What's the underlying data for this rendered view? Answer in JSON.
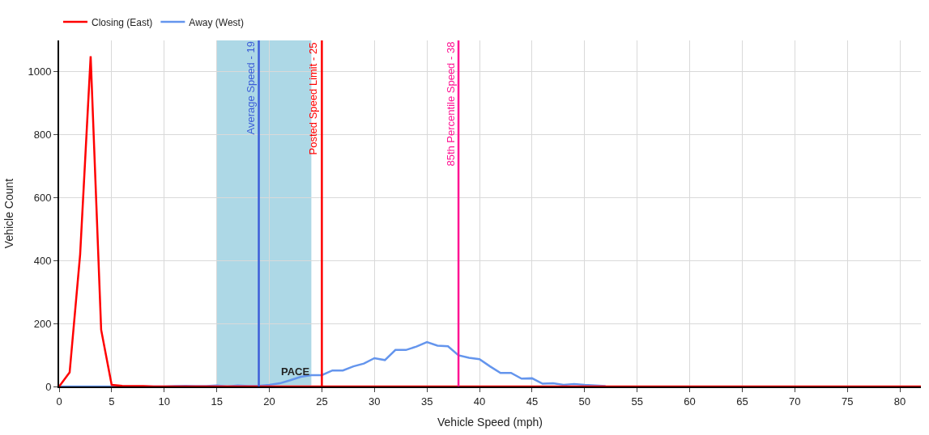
{
  "chart_data": {
    "type": "line",
    "xlabel": "Vehicle Speed (mph)",
    "ylabel": "Vehicle Count",
    "x": [
      0,
      1,
      2,
      3,
      4,
      5,
      6,
      7,
      8,
      9,
      10,
      11,
      12,
      13,
      14,
      15,
      16,
      17,
      18,
      19,
      20,
      21,
      22,
      23,
      24,
      25,
      26,
      27,
      28,
      29,
      30,
      31,
      32,
      33,
      34,
      35,
      36,
      37,
      38,
      39,
      40,
      41,
      42,
      43,
      44,
      45,
      46,
      47,
      48,
      49,
      50,
      51,
      52,
      53,
      54,
      55,
      56,
      57,
      58,
      59,
      60,
      61,
      62,
      63,
      64,
      65,
      66,
      67,
      68,
      69,
      70,
      71,
      72,
      73,
      74,
      75,
      76,
      77,
      78,
      79,
      80,
      81,
      82
    ],
    "series": [
      {
        "name": "Closing (East)",
        "color": "#ff0000",
        "values": [
          0,
          45,
          420,
          1050,
          180,
          5,
          2,
          1,
          1,
          0,
          0,
          0,
          0,
          0,
          0,
          0,
          0,
          0,
          0,
          0,
          0,
          0,
          0,
          0,
          0,
          0,
          0,
          0,
          0,
          0,
          0,
          0,
          0,
          0,
          0,
          0,
          0,
          0,
          0,
          0,
          0,
          0,
          0,
          0,
          0,
          0,
          0,
          0,
          0,
          0,
          0,
          0,
          0,
          0,
          0,
          0,
          0,
          0,
          0,
          0,
          0,
          0,
          0,
          0,
          0,
          0,
          0,
          0,
          0,
          0,
          0,
          0,
          0,
          0,
          0,
          0,
          0,
          0,
          0,
          0,
          0,
          0,
          0
        ]
      },
      {
        "name": "Away (West)",
        "color": "#6495ed",
        "values": [
          0,
          0,
          0,
          0,
          0,
          0,
          0,
          0,
          0,
          0,
          0,
          1,
          2,
          1,
          1,
          3,
          0,
          3,
          1,
          2,
          5,
          10,
          20,
          31,
          36,
          36,
          51,
          51,
          64,
          73,
          90,
          84,
          116,
          116,
          127,
          141,
          130,
          128,
          99,
          91,
          87,
          64,
          43,
          43,
          25,
          26,
          9,
          10,
          5,
          8,
          5,
          3,
          1,
          null,
          null,
          null,
          null,
          null,
          null,
          null,
          null,
          null,
          null,
          null,
          null,
          null,
          null,
          null,
          null,
          null,
          null,
          null,
          null,
          null,
          null,
          null,
          null,
          null,
          null,
          null,
          null,
          null,
          null
        ]
      }
    ],
    "xlim": [
      0,
      82
    ],
    "xticks": [
      0,
      5,
      10,
      15,
      20,
      25,
      30,
      35,
      40,
      45,
      50,
      55,
      60,
      65,
      70,
      75,
      80
    ],
    "ylim": [
      0,
      1100
    ],
    "yticks": [
      0,
      200,
      400,
      600,
      800,
      1000
    ],
    "ref_lines": [
      {
        "axis": "x",
        "value": 19,
        "label": "Average Speed - 19",
        "color": "#3d5ed8"
      },
      {
        "axis": "x",
        "value": 25,
        "label": "Posted Speed Limit - 25",
        "color": "#ff0000"
      },
      {
        "axis": "x",
        "value": 38,
        "label": "85th Percentile Speed - 38",
        "color": "#ff1493"
      }
    ],
    "bands": [
      {
        "axis": "x",
        "from": 15,
        "to": 24,
        "label": "PACE",
        "color": "#add8e6"
      }
    ],
    "grid": true,
    "legend": "top left",
    "marker": "none",
    "line_style": "solid"
  }
}
